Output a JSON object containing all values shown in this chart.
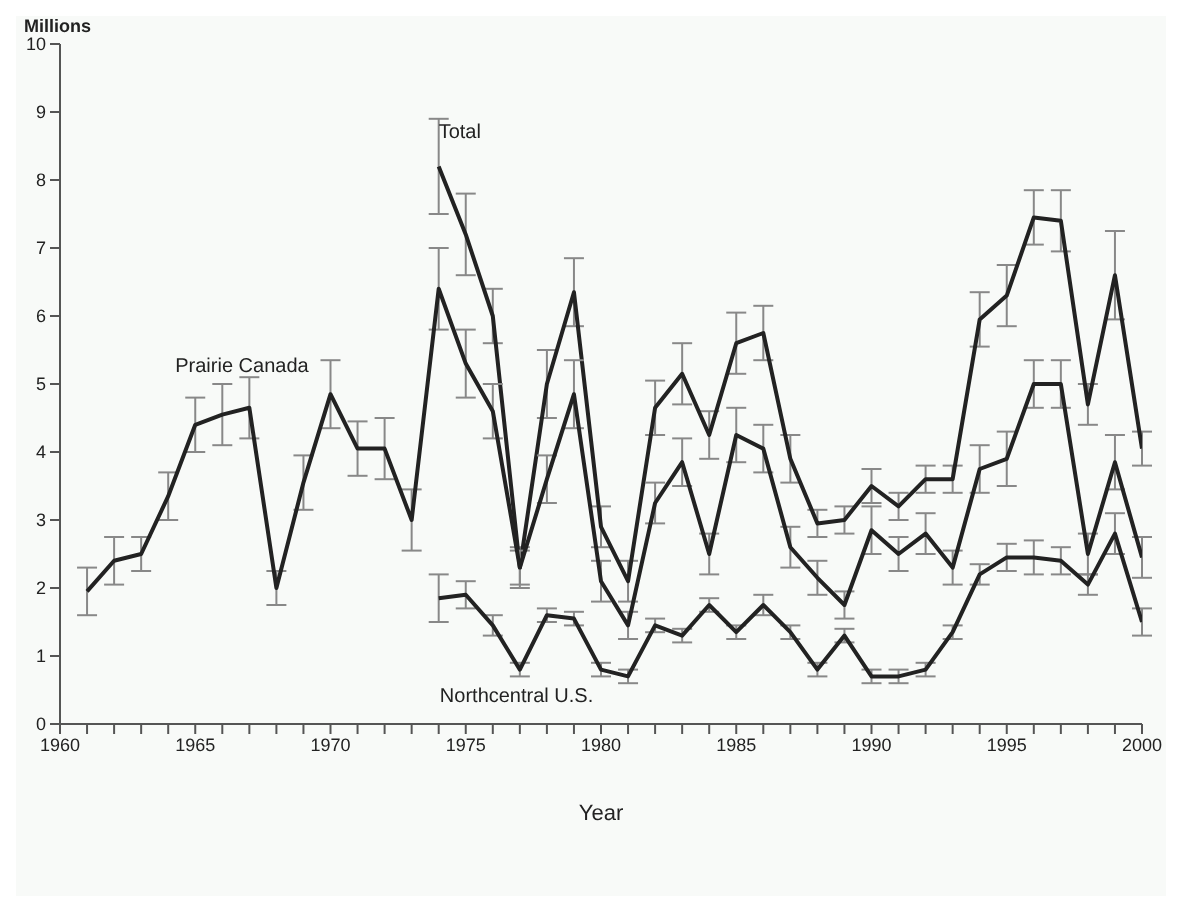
{
  "chart_data": {
    "type": "line",
    "xlabel": "Year",
    "ylabel": "Millions",
    "xlim": [
      1960,
      2000
    ],
    "ylim": [
      0,
      10
    ],
    "xticks": [
      1960,
      {
        "value": 1961,
        "label": null
      },
      {
        "value": 1962,
        "label": null
      },
      {
        "value": 1963,
        "label": null
      },
      {
        "value": 1964,
        "label": null
      },
      1965,
      {
        "value": 1966,
        "label": null
      },
      {
        "value": 1967,
        "label": null
      },
      {
        "value": 1968,
        "label": null
      },
      {
        "value": 1969,
        "label": null
      },
      1970,
      {
        "value": 1971,
        "label": null
      },
      {
        "value": 1972,
        "label": null
      },
      {
        "value": 1973,
        "label": null
      },
      {
        "value": 1974,
        "label": null
      },
      1975,
      {
        "value": 1976,
        "label": null
      },
      {
        "value": 1977,
        "label": null
      },
      {
        "value": 1978,
        "label": null
      },
      {
        "value": 1979,
        "label": null
      },
      1980,
      {
        "value": 1981,
        "label": null
      },
      {
        "value": 1982,
        "label": null
      },
      {
        "value": 1983,
        "label": null
      },
      {
        "value": 1984,
        "label": null
      },
      1985,
      {
        "value": 1986,
        "label": null
      },
      {
        "value": 1987,
        "label": null
      },
      {
        "value": 1988,
        "label": null
      },
      {
        "value": 1989,
        "label": null
      },
      1990,
      {
        "value": 1991,
        "label": null
      },
      {
        "value": 1992,
        "label": null
      },
      {
        "value": 1993,
        "label": null
      },
      {
        "value": 1994,
        "label": null
      },
      1995,
      {
        "value": 1996,
        "label": null
      },
      {
        "value": 1997,
        "label": null
      },
      {
        "value": 1998,
        "label": null
      },
      {
        "value": 1999,
        "label": null
      },
      2000
    ],
    "yticks": [
      0,
      1,
      2,
      3,
      4,
      5,
      6,
      7,
      8,
      9,
      10
    ],
    "grid": false,
    "legend": false,
    "marker": "none",
    "line_style": "solid",
    "series": [
      {
        "name": "Total",
        "color": "#222222",
        "x": [
          1974,
          1975,
          1976,
          1977,
          1978,
          1979,
          1980,
          1981,
          1982,
          1983,
          1984,
          1985,
          1986,
          1987,
          1988,
          1989,
          1990,
          1991,
          1992,
          1993,
          1994,
          1995,
          1996,
          1997,
          1998,
          1999,
          2000
        ],
        "values": [
          8.2,
          7.2,
          6.0,
          2.3,
          5.0,
          6.35,
          2.9,
          2.1,
          4.65,
          5.15,
          4.25,
          5.6,
          5.75,
          3.9,
          2.95,
          3.0,
          3.5,
          3.2,
          3.6,
          3.6,
          5.95,
          6.3,
          7.45,
          7.4,
          4.7,
          6.6,
          4.05
        ],
        "errors": [
          0.7,
          0.6,
          0.4,
          0.3,
          0.5,
          0.5,
          0.3,
          0.3,
          0.4,
          0.45,
          0.35,
          0.45,
          0.4,
          0.35,
          0.2,
          0.2,
          0.25,
          0.2,
          0.2,
          0.2,
          0.4,
          0.45,
          0.4,
          0.45,
          0.3,
          0.65,
          0.25
        ]
      },
      {
        "name": "Prairie Canada",
        "color": "#222222",
        "x": [
          1961,
          1962,
          1963,
          1964,
          1965,
          1966,
          1967,
          1968,
          1969,
          1970,
          1971,
          1972,
          1973,
          1974,
          1975,
          1976,
          1977,
          1978,
          1979,
          1980,
          1981,
          1982,
          1983,
          1984,
          1985,
          1986,
          1987,
          1988,
          1989,
          1990,
          1991,
          1992,
          1993,
          1994,
          1995,
          1996,
          1997,
          1998,
          1999,
          2000
        ],
        "values": [
          1.95,
          2.4,
          2.5,
          3.35,
          4.4,
          4.55,
          4.65,
          2.0,
          3.55,
          4.85,
          4.05,
          4.05,
          3.0,
          6.4,
          5.3,
          4.6,
          2.3,
          3.6,
          4.85,
          2.1,
          1.45,
          3.25,
          3.85,
          2.5,
          4.25,
          4.05,
          2.6,
          2.15,
          1.75,
          2.85,
          2.5,
          2.8,
          2.3,
          3.75,
          3.9,
          5.0,
          5.0,
          2.5,
          3.85,
          2.45
        ],
        "errors": [
          0.35,
          0.35,
          0.25,
          0.35,
          0.4,
          0.45,
          0.45,
          0.25,
          0.4,
          0.5,
          0.4,
          0.45,
          0.45,
          0.6,
          0.5,
          0.4,
          0.25,
          0.35,
          0.5,
          0.3,
          0.2,
          0.3,
          0.35,
          0.3,
          0.4,
          0.35,
          0.3,
          0.25,
          0.2,
          0.35,
          0.25,
          0.3,
          0.25,
          0.35,
          0.4,
          0.35,
          0.35,
          0.3,
          0.4,
          0.3
        ]
      },
      {
        "name": "Northcentral U.S.",
        "color": "#222222",
        "x": [
          1974,
          1975,
          1976,
          1977,
          1978,
          1979,
          1980,
          1981,
          1982,
          1983,
          1984,
          1985,
          1986,
          1987,
          1988,
          1989,
          1990,
          1991,
          1992,
          1993,
          1994,
          1995,
          1996,
          1997,
          1998,
          1999,
          2000
        ],
        "values": [
          1.85,
          1.9,
          1.45,
          0.8,
          1.6,
          1.55,
          0.8,
          0.7,
          1.45,
          1.3,
          1.75,
          1.35,
          1.75,
          1.35,
          0.8,
          1.3,
          0.7,
          0.7,
          0.8,
          1.35,
          2.2,
          2.45,
          2.45,
          2.4,
          2.05,
          2.8,
          1.5
        ],
        "errors": [
          0.35,
          0.2,
          0.15,
          0.1,
          0.1,
          0.1,
          0.1,
          0.1,
          0.1,
          0.1,
          0.1,
          0.1,
          0.15,
          0.1,
          0.1,
          0.1,
          0.1,
          0.1,
          0.1,
          0.1,
          0.15,
          0.2,
          0.25,
          0.2,
          0.15,
          0.3,
          0.2
        ]
      }
    ]
  }
}
